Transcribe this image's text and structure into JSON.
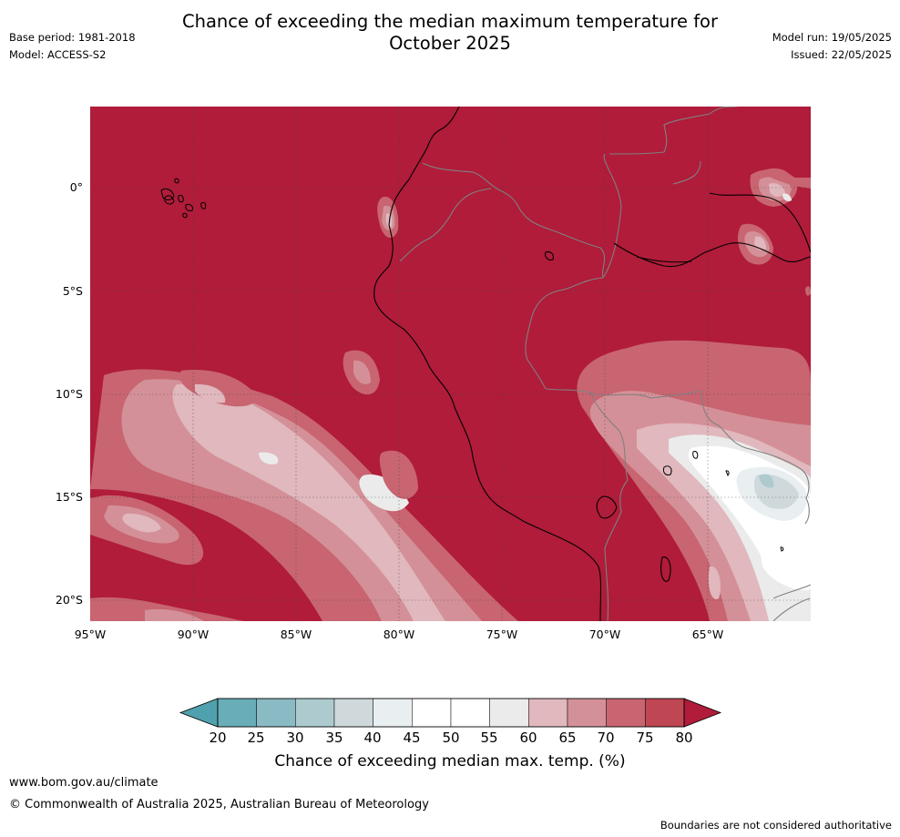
{
  "title_line1": "Chance of exceeding the median maximum temperature for",
  "title_line2": "October 2025",
  "meta": {
    "base_period": "Base period: 1981-2018",
    "model": "Model: ACCESS-S2",
    "model_run": "Model run: 19/05/2025",
    "issued": "Issued: 22/05/2025"
  },
  "map": {
    "region": "Peru / western South America",
    "background_color": "#b01c3a",
    "lat_labels": [
      "0°",
      "5°S",
      "10°S",
      "15°S",
      "20°S"
    ],
    "lon_labels": [
      "95°W",
      "90°W",
      "85°W",
      "80°W",
      "75°W",
      "70°W",
      "65°W"
    ]
  },
  "colorbar": {
    "ticks": [
      "20",
      "25",
      "30",
      "35",
      "40",
      "45",
      "50",
      "55",
      "60",
      "65",
      "70",
      "75",
      "80"
    ],
    "low_arrow_color": "#4fa1ad",
    "high_arrow_color": "#b01c3a",
    "colors": [
      "#68adb8",
      "#8abac4",
      "#adcbcf",
      "#cfd9db",
      "#e9eff1",
      "#ffffff",
      "#ffffff",
      "#ebebeb",
      "#e0b8bd",
      "#d49098",
      "#c86570",
      "#bf4653"
    ],
    "title": "Chance of exceeding median max. temp. (%)"
  },
  "footer": {
    "url": "www.bom.gov.au/climate",
    "copyright": "© Commonwealth of Australia 2025, Australian Bureau of Meteorology",
    "disclaimer": "Boundaries are not considered authoritative"
  }
}
